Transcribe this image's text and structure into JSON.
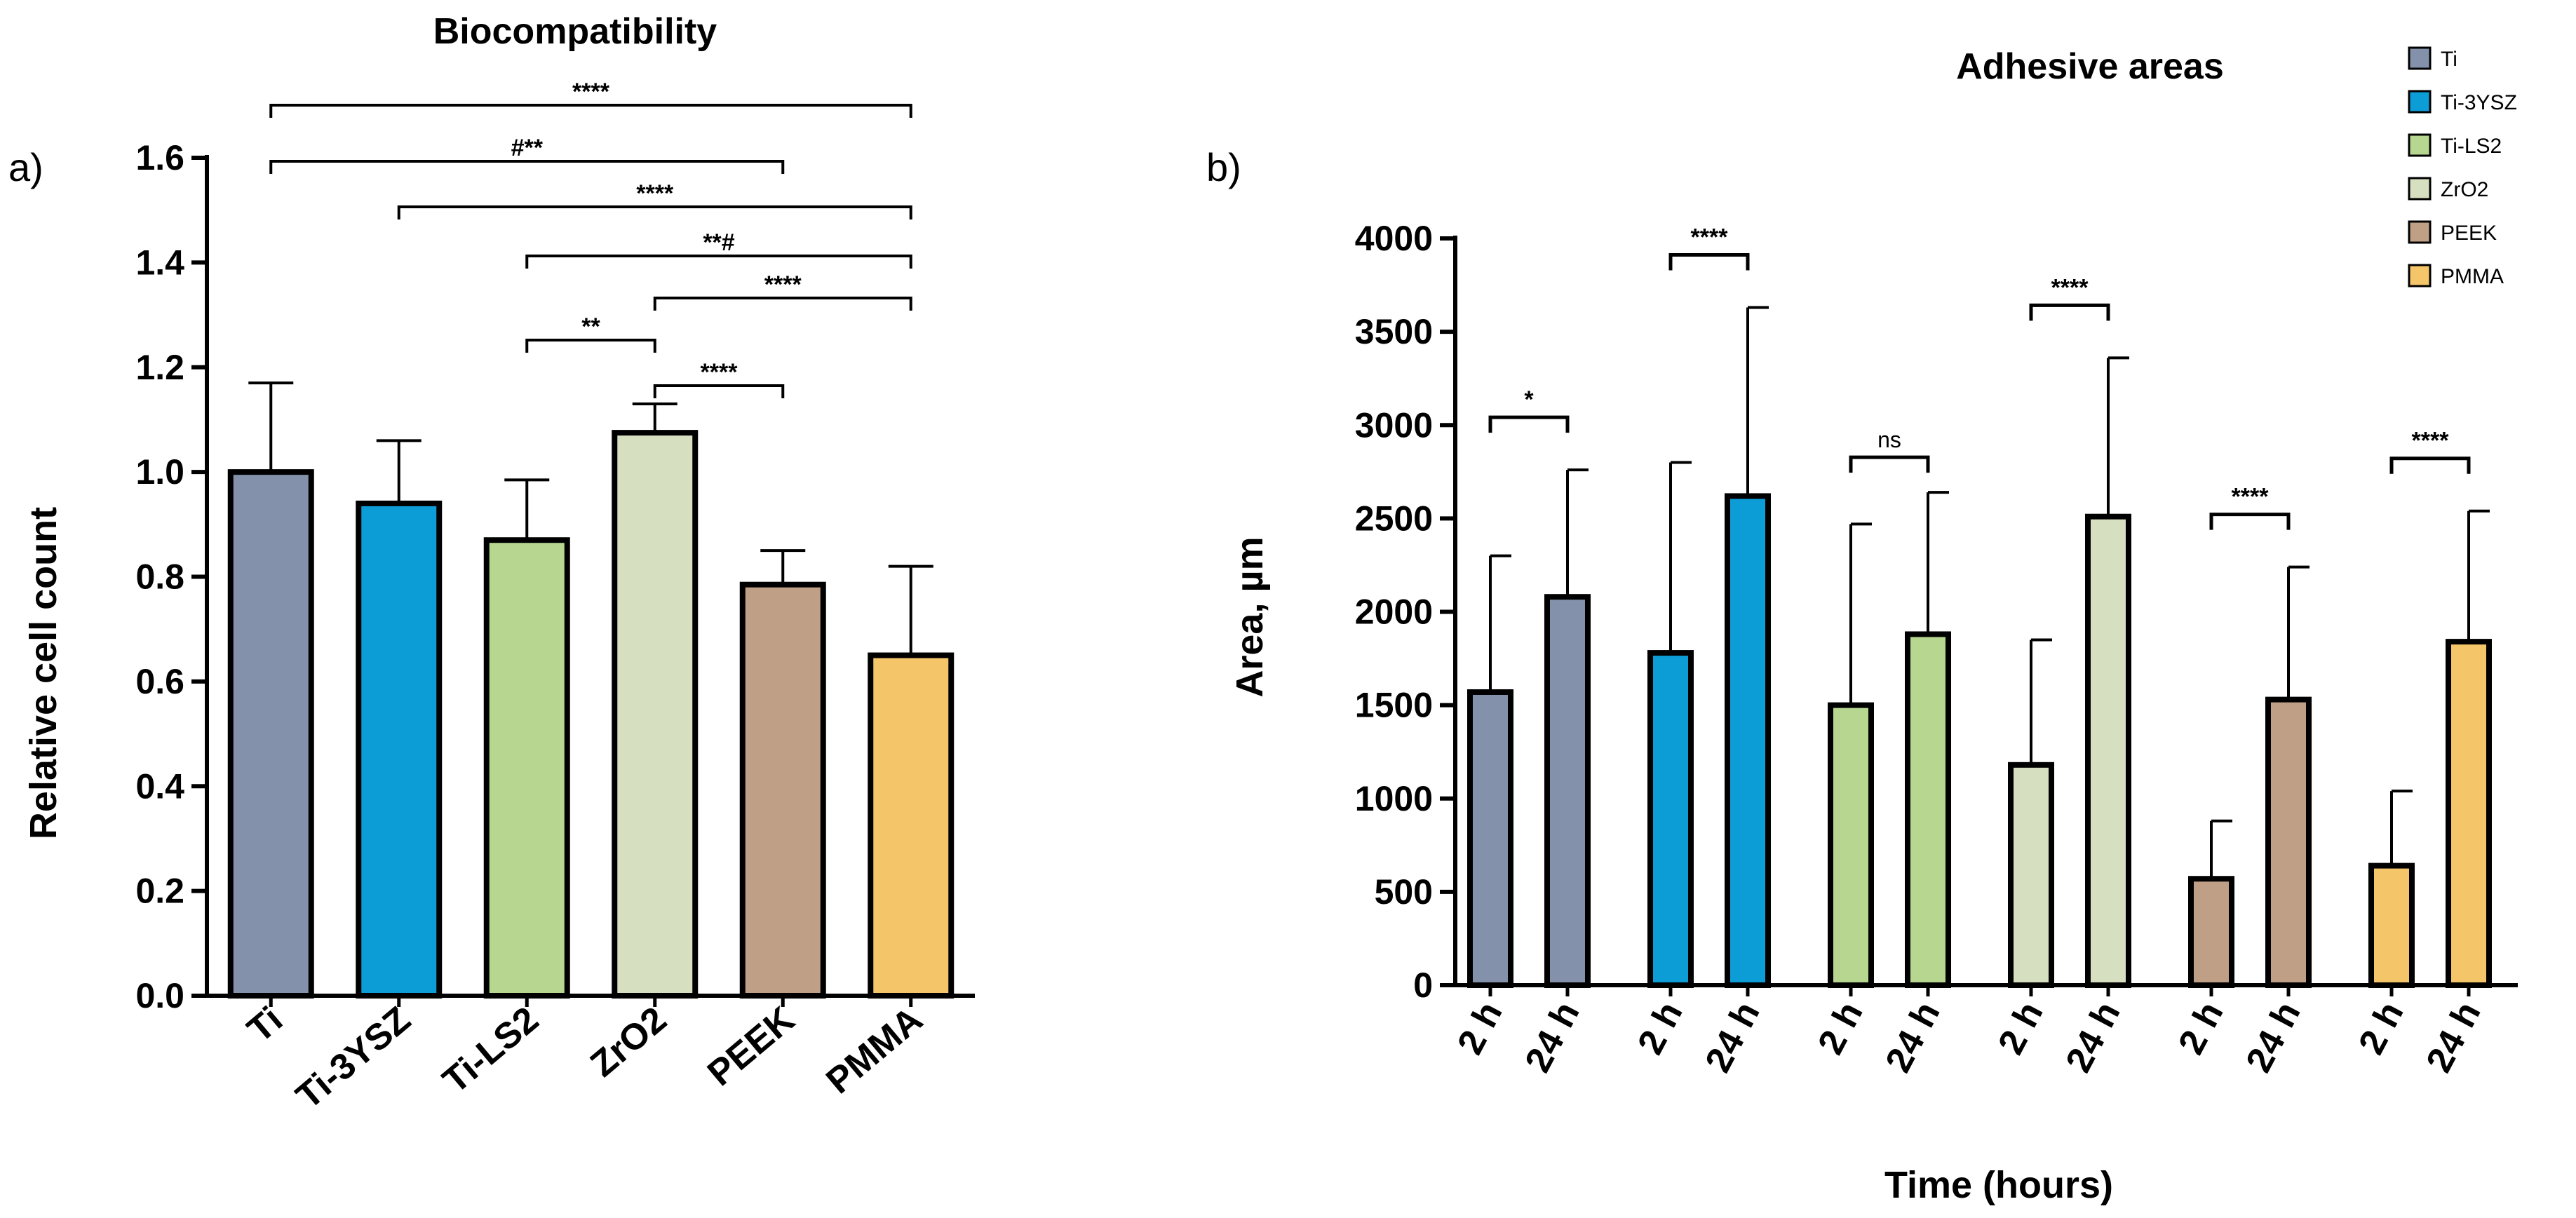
{
  "chart_data": [
    {
      "type": "bar",
      "panel_label": "a)",
      "title": "Biocompatibility",
      "categories": [
        "Ti",
        "Ti-3YSZ",
        "Ti-LS2",
        "ZrO2",
        "PEEK",
        "PMMA"
      ],
      "values": [
        1.0,
        0.94,
        0.87,
        1.075,
        0.785,
        0.65
      ],
      "errors": [
        0.17,
        0.12,
        0.115,
        0.055,
        0.065,
        0.17
      ],
      "colors": [
        "#8392aa",
        "#0d9dd6",
        "#b7d791",
        "#d6dfc0",
        "#bf9f85",
        "#f5c56a"
      ],
      "ylabel": "Relative cell count",
      "xlabel": "",
      "ylim": [
        0,
        1.6
      ],
      "yticks": [
        "0.0",
        "0.2",
        "0.4",
        "0.6",
        "0.8",
        "1.0",
        "1.2",
        "1.4",
        "1.6"
      ],
      "grid": false,
      "significance": [
        {
          "from": "Ti",
          "to": "PMMA",
          "label": "****"
        },
        {
          "from": "Ti",
          "to": "PEEK",
          "label": "#**"
        },
        {
          "from": "Ti-3YSZ",
          "to": "PMMA",
          "label": "****"
        },
        {
          "from": "Ti-LS2",
          "to": "PMMA",
          "label": "**#"
        },
        {
          "from": "ZrO2",
          "to": "PMMA",
          "label": "****"
        },
        {
          "from": "Ti-LS2",
          "to": "ZrO2",
          "label": "**"
        },
        {
          "from": "ZrO2",
          "to": "PEEK",
          "label": "****"
        }
      ]
    },
    {
      "type": "bar",
      "panel_label": "b)",
      "title": "Adhesive areas",
      "xlabel": "Time (hours)",
      "ylabel": "Area, µm",
      "ylim": [
        0,
        4000
      ],
      "yticks": [
        "0",
        "500",
        "1000",
        "1500",
        "2000",
        "2500",
        "3000",
        "3500",
        "4000"
      ],
      "grid": false,
      "legend_position": "top-right",
      "time_labels": [
        "2 h",
        "24 h"
      ],
      "series": [
        {
          "name": "Ti",
          "color": "#8392aa",
          "values": [
            1570,
            2080
          ],
          "errors": [
            730,
            680
          ],
          "sig": "*"
        },
        {
          "name": "Ti-3YSZ",
          "color": "#0d9dd6",
          "values": [
            1780,
            2620
          ],
          "errors": [
            1020,
            1010
          ],
          "sig": "****"
        },
        {
          "name": "Ti-LS2",
          "color": "#b7d791",
          "values": [
            1500,
            1880
          ],
          "errors": [
            970,
            760
          ],
          "sig": "ns"
        },
        {
          "name": "ZrO2",
          "color": "#d6dfc0",
          "values": [
            1180,
            2510
          ],
          "errors": [
            670,
            850
          ],
          "sig": "****"
        },
        {
          "name": "PEEK",
          "color": "#bf9f85",
          "values": [
            570,
            1530
          ],
          "errors": [
            310,
            710
          ],
          "sig": "****"
        },
        {
          "name": "PMMA",
          "color": "#f5c56a",
          "values": [
            640,
            1840
          ],
          "errors": [
            400,
            700
          ],
          "sig": "****"
        }
      ]
    }
  ]
}
